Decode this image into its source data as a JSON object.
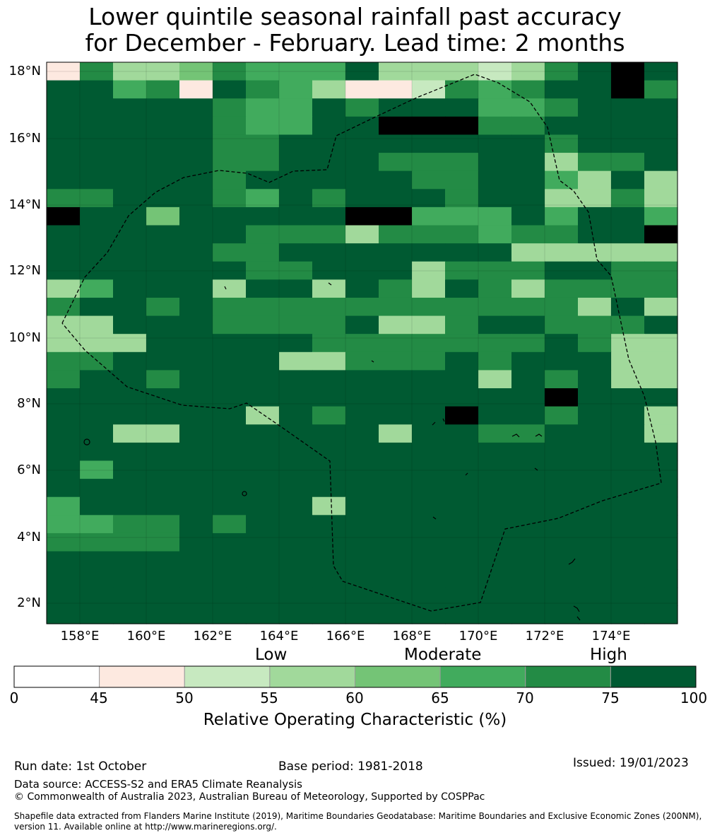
{
  "title": {
    "line1": "Lower quintile seasonal rainfall past accuracy",
    "line2": "for December - February. Lead time: 2 months"
  },
  "map": {
    "lat_ticks": [
      "18°N",
      "16°N",
      "14°N",
      "12°N",
      "10°N",
      "8°N",
      "6°N",
      "4°N",
      "2°N"
    ],
    "lon_ticks": [
      "158°E",
      "160°E",
      "162°E",
      "164°E",
      "166°E",
      "168°E",
      "170°E",
      "172°E",
      "174°E"
    ],
    "grid_rows": [
      "1633465557333236787",
      "7756176531126567786",
      "7777765576777556777",
      "7777765577888667777",
      "7777766777777776777",
      "7777766777666773667",
      "7777767777766775373",
      "6677765767776773363",
      "8774777778855575775",
      "7777776663666566778",
      "7777766777777733333",
      "7777776677736667766",
      "3577737737637636666",
      "6776766666666666373",
      "3377766667336776667",
      "3337777766666667633",
      "6677777336667677733",
      "6776777777777376733",
      "7777777777777778777",
      "7777773767778776773",
      "7733777777377667773",
      "7777777777777777777",
      "7577777777777777777",
      "7777777777777777777",
      "5777777737777777777",
      "5566767777777777777",
      "6666777777777777777",
      "7777777777777777777",
      "7777777777777777777",
      "7777777777777777777",
      "7777777777777777777"
    ],
    "eez_label": "dashed EEZ boundary"
  },
  "legend": {
    "categories": [
      "Low",
      "Moderate",
      "High"
    ],
    "ticks": [
      "0",
      "45",
      "50",
      "55",
      "60",
      "65",
      "70",
      "75",
      "100"
    ],
    "colors": [
      "#ffffff",
      "#fde9e0",
      "#c7e9c0",
      "#a1d99b",
      "#74c476",
      "#41ab5d",
      "#238b45",
      "#005a32"
    ],
    "label": "Relative Operating Characteristic (%)"
  },
  "footer": {
    "run_date": "Run date: 1st October",
    "base_period": "Base period: 1981-2018",
    "issued": "Issued: 19/01/2023",
    "data_source": "Data source: ACCESS-S2 and ERA5 Climate Reanalysis",
    "copyright": "© Commonwealth of Australia 2023, Australian Bureau of Meteorology, Supported by COSPPac",
    "shapefile_1": "Shapefile data extracted from Flanders Marine Institute (2019), Maritime Boundaries Geodatabase: Maritime Boundaries and Exclusive Economic Zones (200NM),",
    "shapefile_2": "version 11. Available online at http://www.marineregions.org/."
  }
}
